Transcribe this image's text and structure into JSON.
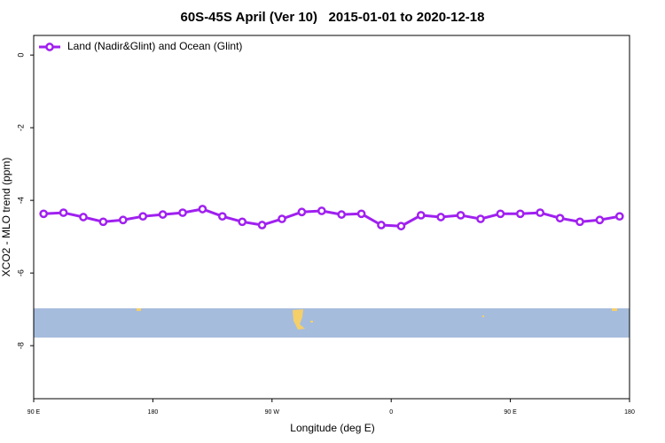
{
  "chart_data": {
    "type": "line",
    "title": "60S-45S April (Ver 10)   2015-01-01 to 2020-12-18",
    "x_label": "Longitude (deg E)",
    "y_label": "XCO2 - MLO trend (ppm)",
    "x": [
      97.5,
      112.5,
      127.5,
      142.5,
      157.5,
      172.5,
      187.5,
      202.5,
      217.5,
      232.5,
      247.5,
      262.5,
      277.5,
      292.5,
      307.5,
      322.5,
      337.5,
      352.5,
      367.5,
      382.5,
      397.5,
      412.5,
      427.5,
      442.5,
      457.5,
      472.5,
      487.5,
      502.5,
      517.5,
      532.5
    ],
    "series": [
      {
        "name": "Land (Nadir&Glint) and Ocean (Glint)",
        "color": "#a020f0",
        "values": [
          -4.37,
          -4.34,
          -4.46,
          -4.59,
          -4.54,
          -4.44,
          -4.39,
          -4.34,
          -4.24,
          -4.44,
          -4.59,
          -4.68,
          -4.51,
          -4.32,
          -4.29,
          -4.39,
          -4.37,
          -4.68,
          -4.71,
          -4.41,
          -4.46,
          -4.41,
          -4.51,
          -4.37,
          -4.37,
          -4.34,
          -4.49,
          -4.59,
          -4.54,
          -4.44
        ]
      }
    ],
    "xlim": [
      90,
      540
    ],
    "xticks": [
      {
        "value": 90,
        "label": "90 E"
      },
      180,
      {
        "value": 270,
        "label": "90 W"
      },
      {
        "value": 360,
        "label": "0"
      },
      {
        "value": 450,
        "label": "90 E"
      },
      {
        "value": 540,
        "label": "180"
      }
    ],
    "ylim": [
      -9.46,
      0.54
    ],
    "yticks": [
      0,
      -2,
      -4,
      -6,
      -8
    ],
    "legend": "top-left"
  }
}
